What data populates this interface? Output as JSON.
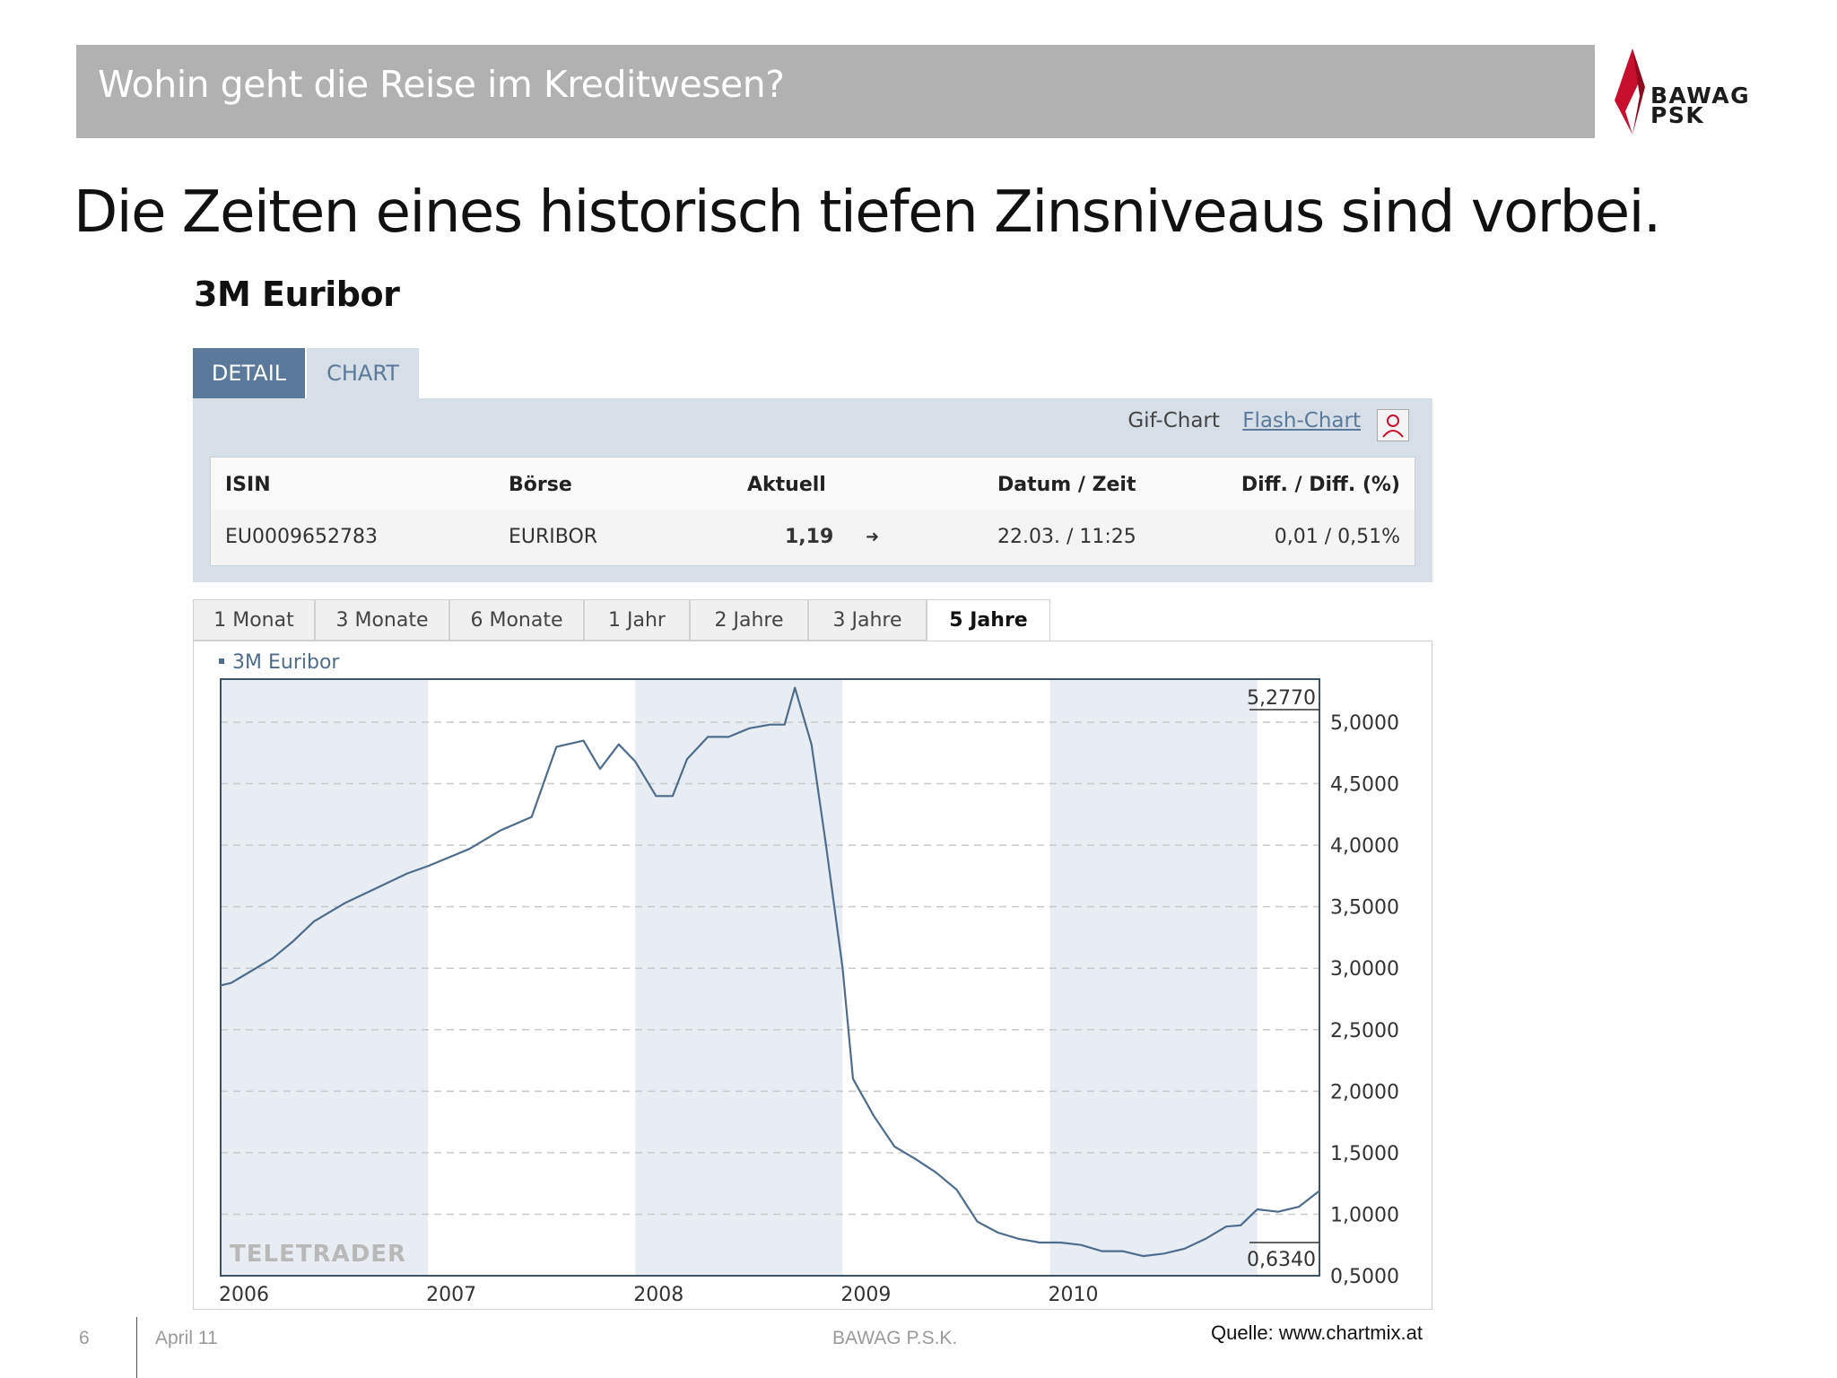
{
  "slide": {
    "header_title": "Wohin geht die Reise im Kreditwesen?",
    "logo_line1": "BAWAG",
    "logo_line2": "PSK",
    "headline": "Die Zeiten eines historisch tiefen Zinsniveaus sind vorbei.",
    "chart_title": "3M Euribor"
  },
  "widget": {
    "tabs": [
      "DETAIL",
      "CHART"
    ],
    "active_tab": "DETAIL",
    "gif_chart_label": "Gif-Chart",
    "flash_chart_label": "Flash-Chart",
    "table": {
      "headers": [
        "ISIN",
        "Börse",
        "Aktuell",
        "Datum / Zeit",
        "Diff. / Diff. (%)"
      ],
      "row": {
        "isin": "EU0009652783",
        "boerse": "EURIBOR",
        "aktuell": "1,19",
        "trend_arrow": "➜",
        "datum_zeit": "22.03. / 11:25",
        "diff": "0,01 / 0,51%"
      }
    },
    "period_tabs": [
      "1 Monat",
      "3 Monate",
      "6 Monate",
      "1 Jahr",
      "2 Jahre",
      "3 Jahre",
      "5 Jahre"
    ],
    "active_period": "5 Jahre",
    "watermark": "TELETRADER"
  },
  "footer": {
    "page_number": "6",
    "date": "April 11",
    "company": "BAWAG P.S.K.",
    "source": "Quelle: www.chartmix.at"
  },
  "colors": {
    "header_gray": "#b1b1b1",
    "brand_red": "#c8102e",
    "tab_blue": "#5b7a9b",
    "panel_bg": "#d6dee7",
    "line_color": "#4e6d8c",
    "band_shade": "#e8edf3"
  },
  "chart_data": {
    "type": "line",
    "title": "",
    "legend": [
      "3M Euribor"
    ],
    "legend_position": "top-left",
    "x_labels": [
      "2006",
      "2007",
      "2008",
      "2009",
      "2010"
    ],
    "y_ticks": [
      "0,5000",
      "1,0000",
      "1,5000",
      "2,0000",
      "2,5000",
      "3,0000",
      "3,5000",
      "4,0000",
      "4,5000",
      "5,0000"
    ],
    "y_ticks_values": [
      0.5,
      1.0,
      1.5,
      2.0,
      2.5,
      3.0,
      3.5,
      4.0,
      4.5,
      5.0
    ],
    "ylim": [
      0.5,
      5.35
    ],
    "max_label": "5,2770",
    "min_label": "0,6340",
    "grid": "horizontal dashed",
    "series": [
      {
        "name": "3M Euribor",
        "x": [
          2006.0,
          2006.05,
          2006.15,
          2006.25,
          2006.35,
          2006.45,
          2006.6,
          2006.75,
          2006.9,
          2007.0,
          2007.2,
          2007.35,
          2007.5,
          2007.62,
          2007.75,
          2007.83,
          2007.92,
          2008.0,
          2008.1,
          2008.18,
          2008.25,
          2008.35,
          2008.45,
          2008.55,
          2008.65,
          2008.72,
          2008.77,
          2008.85,
          2008.92,
          2009.0,
          2009.05,
          2009.15,
          2009.25,
          2009.35,
          2009.45,
          2009.55,
          2009.65,
          2009.75,
          2009.85,
          2009.95,
          2010.05,
          2010.15,
          2010.25,
          2010.35,
          2010.45,
          2010.55,
          2010.65,
          2010.75,
          2010.85,
          2010.92,
          2011.0,
          2011.1,
          2011.2,
          2011.3
        ],
        "values": [
          2.86,
          2.88,
          2.98,
          3.08,
          3.22,
          3.38,
          3.53,
          3.65,
          3.77,
          3.83,
          3.97,
          4.12,
          4.23,
          4.8,
          4.85,
          4.62,
          4.82,
          4.68,
          4.4,
          4.4,
          4.7,
          4.88,
          4.88,
          4.95,
          4.98,
          4.98,
          5.28,
          4.82,
          4.0,
          3.0,
          2.1,
          1.8,
          1.55,
          1.45,
          1.34,
          1.2,
          0.94,
          0.85,
          0.8,
          0.77,
          0.77,
          0.75,
          0.7,
          0.7,
          0.66,
          0.68,
          0.72,
          0.8,
          0.9,
          0.91,
          1.04,
          1.02,
          1.06,
          1.19
        ]
      }
    ]
  }
}
